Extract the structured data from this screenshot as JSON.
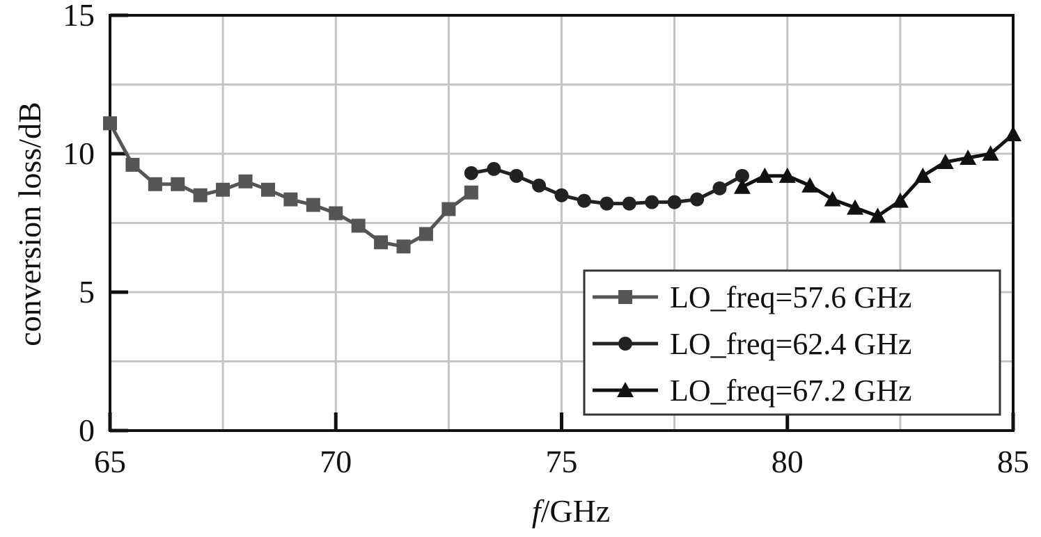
{
  "chart_data": {
    "type": "line",
    "xlabel": {
      "italic": "f",
      "rest": "/GHz"
    },
    "ylabel": "conversion loss/dB",
    "xlim": [
      65,
      85
    ],
    "ylim": [
      0,
      15
    ],
    "x_ticks": [
      "65",
      "70",
      "75",
      "80",
      "85"
    ],
    "y_ticks": [
      "0",
      "5",
      "10",
      "15"
    ],
    "x_ticks_values": [
      65,
      70,
      75,
      80,
      85
    ],
    "y_ticks_values": [
      0,
      5,
      10,
      15
    ],
    "x_minor_grid": [
      67.5,
      72.5,
      77.5,
      82.5
    ],
    "y_minor_grid": [
      2.5,
      7.5,
      12.5
    ],
    "grid": true,
    "legend_position": "bottom-right",
    "series": [
      {
        "name": "LO_freq=57.6 GHz",
        "marker": "square",
        "color": "#555555",
        "x": [
          65.0,
          65.5,
          66.0,
          66.5,
          67.0,
          67.5,
          68.0,
          68.5,
          69.0,
          69.5,
          70.0,
          70.5,
          71.0,
          71.5,
          72.0,
          72.5,
          73.0
        ],
        "y": [
          11.1,
          9.6,
          8.9,
          8.9,
          8.5,
          8.7,
          9.0,
          8.7,
          8.35,
          8.15,
          7.85,
          7.4,
          6.8,
          6.65,
          7.1,
          8.0,
          8.6
        ]
      },
      {
        "name": "LO_freq=62.4 GHz",
        "marker": "circle",
        "color": "#222222",
        "x": [
          73.0,
          73.5,
          74.0,
          74.5,
          75.0,
          75.5,
          76.0,
          76.5,
          77.0,
          77.5,
          78.0,
          78.5,
          79.0
        ],
        "y": [
          9.3,
          9.45,
          9.2,
          8.85,
          8.5,
          8.3,
          8.2,
          8.2,
          8.25,
          8.25,
          8.35,
          8.75,
          9.2
        ]
      },
      {
        "name": "LO_freq=67.2 GHz",
        "marker": "triangle",
        "color": "#111111",
        "x": [
          79.0,
          79.5,
          80.0,
          80.5,
          81.0,
          81.5,
          82.0,
          82.5,
          83.0,
          83.5,
          84.0,
          84.5,
          85.0
        ],
        "y": [
          8.8,
          9.2,
          9.2,
          8.85,
          8.35,
          8.05,
          7.75,
          8.3,
          9.2,
          9.7,
          9.85,
          10.0,
          10.7
        ]
      }
    ]
  }
}
